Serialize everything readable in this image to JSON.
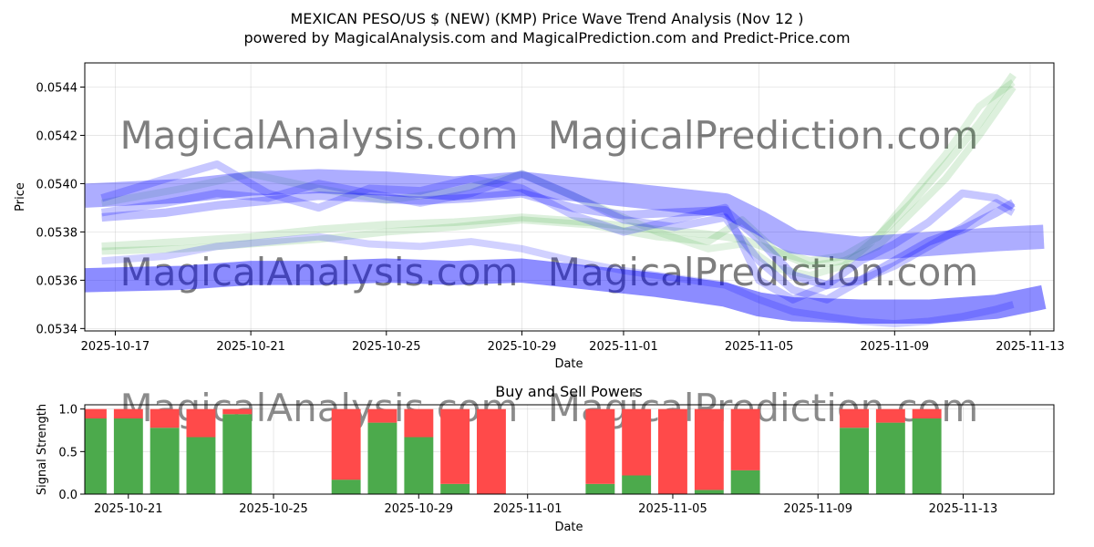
{
  "chart_data": [
    {
      "type": "line",
      "title_line1": "MEXICAN PESO/US $ (NEW) (KMP) Price Wave Trend Analysis (Nov 12 )",
      "title_line2": "powered by MagicalAnalysis.com and MagicalPrediction.com and Predict-Price.com",
      "xlabel": "Date",
      "ylabel": "Price",
      "xlim_days": [
        -0.9,
        27.7
      ],
      "ylim": [
        0.05339,
        0.0545
      ],
      "x_ticks": [
        {
          "day": 0,
          "label": "2025-10-17"
        },
        {
          "day": 4,
          "label": "2025-10-21"
        },
        {
          "day": 8,
          "label": "2025-10-25"
        },
        {
          "day": 12,
          "label": "2025-10-29"
        },
        {
          "day": 15,
          "label": "2025-11-01"
        },
        {
          "day": 19,
          "label": "2025-11-05"
        },
        {
          "day": 23,
          "label": "2025-11-09"
        },
        {
          "day": 27,
          "label": "2025-11-13"
        }
      ],
      "y_ticks": [
        {
          "value": 0.0534,
          "label": "0.0534"
        },
        {
          "value": 0.0536,
          "label": "0.0536"
        },
        {
          "value": 0.0538,
          "label": "0.0538"
        },
        {
          "value": 0.054,
          "label": "0.0540"
        },
        {
          "value": 0.0542,
          "label": "0.0542"
        },
        {
          "value": 0.0544,
          "label": "0.0544"
        }
      ],
      "watermarks": [
        "MagicalAnalysis.com",
        "MagicalPrediction.com"
      ],
      "series": [
        {
          "name": "green-1",
          "color": "#2ca02c",
          "opacity": 0.16,
          "width_value": 3.2e-05,
          "x": [
            -0.4,
            2,
            4,
            6,
            8,
            10,
            12,
            14,
            16,
            17.5,
            18.5,
            19.5,
            20.5,
            21.5,
            22.5,
            23.5,
            24.5,
            25.5,
            26.5
          ],
          "y": [
            0.05374,
            0.05376,
            0.05378,
            0.05381,
            0.05383,
            0.05384,
            0.05386,
            0.05384,
            0.05381,
            0.05379,
            0.05377,
            0.05372,
            0.05368,
            0.0537,
            0.05378,
            0.05392,
            0.05408,
            0.05425,
            0.05445
          ]
        },
        {
          "name": "green-2",
          "color": "#2ca02c",
          "opacity": 0.16,
          "width_value": 3e-05,
          "x": [
            -0.4,
            2,
            4,
            6,
            8,
            10,
            12,
            14,
            16,
            17.5,
            18.5,
            19.5,
            20.5,
            21.5,
            22.5,
            23.5,
            24.5,
            25.5,
            26.5
          ],
          "y": [
            0.05372,
            0.05373,
            0.05375,
            0.05377,
            0.0538,
            0.05382,
            0.05385,
            0.05383,
            0.05378,
            0.05376,
            0.05385,
            0.05372,
            0.05366,
            0.05368,
            0.05374,
            0.05388,
            0.05402,
            0.0542,
            0.0544
          ]
        },
        {
          "name": "green-3",
          "color": "#2ca02c",
          "opacity": 0.14,
          "width_value": 3e-05,
          "x": [
            -0.4,
            2,
            4,
            6,
            8,
            10,
            12,
            14,
            16,
            17.5,
            18.5,
            19.5,
            20.5,
            21.5,
            22.5,
            23.5,
            24.5,
            25.5,
            26.5
          ],
          "y": [
            0.05392,
            0.05398,
            0.05404,
            0.05398,
            0.05393,
            0.05397,
            0.05404,
            0.05392,
            0.0538,
            0.05373,
            0.05375,
            0.05365,
            0.05362,
            0.05366,
            0.05378,
            0.05395,
            0.05412,
            0.05432,
            0.05442
          ]
        },
        {
          "name": "blue-upper-band",
          "color": "#0000ff",
          "opacity": 0.32,
          "width_value": 0.0001,
          "x": [
            -0.9,
            2,
            4,
            6,
            8,
            10,
            12,
            14,
            16,
            18,
            19,
            20,
            22,
            24,
            26,
            27.4
          ],
          "y": [
            0.05395,
            0.05397,
            0.054,
            0.05401,
            0.054,
            0.05398,
            0.054,
            0.05397,
            0.05394,
            0.05391,
            0.05384,
            0.05376,
            0.05373,
            0.05375,
            0.05377,
            0.05378
          ]
        },
        {
          "name": "blue-lower-band",
          "color": "#0000ff",
          "opacity": 0.45,
          "width_value": 0.0001,
          "x": [
            -0.9,
            2,
            4,
            6,
            8,
            10,
            12,
            14,
            16,
            18,
            19,
            20,
            22,
            24,
            26,
            27.4
          ],
          "y": [
            0.0536,
            0.05361,
            0.05363,
            0.05363,
            0.05364,
            0.05363,
            0.05364,
            0.05361,
            0.05358,
            0.05354,
            0.0535,
            0.05348,
            0.05347,
            0.05347,
            0.05349,
            0.05353
          ]
        },
        {
          "name": "blue-wave-1",
          "color": "#0000ff",
          "opacity": 0.22,
          "width_value": 3.2e-05,
          "x": [
            -0.4,
            1.5,
            3,
            4.5,
            6,
            7.5,
            9,
            10.5,
            12,
            13.5,
            15,
            16.5,
            18,
            19,
            20,
            21,
            22,
            23,
            24,
            25,
            26,
            26.5
          ],
          "y": [
            0.05394,
            0.05402,
            0.05408,
            0.05396,
            0.0539,
            0.05398,
            0.05397,
            0.05402,
            0.05398,
            0.05387,
            0.0538,
            0.05385,
            0.0539,
            0.0536,
            0.05352,
            0.05358,
            0.05368,
            0.05375,
            0.05384,
            0.05396,
            0.05394,
            0.0539
          ]
        },
        {
          "name": "blue-wave-2",
          "color": "#0000ff",
          "opacity": 0.22,
          "width_value": 3.2e-05,
          "x": [
            -0.4,
            1.5,
            3,
            4.5,
            6,
            7.5,
            9,
            10.5,
            12,
            13.5,
            15,
            16.5,
            18,
            19,
            20,
            21,
            22,
            23,
            24,
            25,
            26,
            26.5
          ],
          "y": [
            0.05388,
            0.05392,
            0.05396,
            0.05394,
            0.054,
            0.05396,
            0.05392,
            0.05396,
            0.05404,
            0.05395,
            0.05385,
            0.05382,
            0.05386,
            0.05368,
            0.05356,
            0.05352,
            0.0536,
            0.05366,
            0.05374,
            0.05382,
            0.05392,
            0.05388
          ]
        },
        {
          "name": "blue-wave-3",
          "color": "#0000ff",
          "opacity": 0.25,
          "width_value": 3.5e-05,
          "x": [
            -0.4,
            1.5,
            3,
            4.5,
            6,
            7.5,
            9,
            10.5,
            12,
            13.5,
            15,
            16.5,
            18,
            19,
            20,
            21,
            22,
            23,
            24,
            25,
            26,
            26.5
          ],
          "y": [
            0.05386,
            0.05388,
            0.05391,
            0.05393,
            0.05395,
            0.05394,
            0.05393,
            0.05394,
            0.05396,
            0.0539,
            0.05387,
            0.05388,
            0.05389,
            0.05377,
            0.05362,
            0.05358,
            0.0536,
            0.05368,
            0.05376,
            0.05381,
            0.05388,
            0.05392
          ]
        },
        {
          "name": "blue-wave-4",
          "color": "#0000ff",
          "opacity": 0.18,
          "width_value": 3e-05,
          "x": [
            -0.4,
            1.5,
            3,
            4.5,
            6,
            7.5,
            9,
            10.5,
            12,
            13.5,
            15,
            16.5,
            18,
            19,
            20,
            21,
            22,
            23,
            24,
            25,
            26,
            26.5
          ],
          "y": [
            0.05368,
            0.0537,
            0.05374,
            0.05376,
            0.05378,
            0.05375,
            0.05374,
            0.05376,
            0.05373,
            0.05368,
            0.05364,
            0.05361,
            0.05358,
            0.05352,
            0.05347,
            0.05345,
            0.05343,
            0.05342,
            0.05343,
            0.05345,
            0.05348,
            0.0535
          ]
        }
      ]
    },
    {
      "type": "bar",
      "title": "Buy and Sell Powers",
      "xlabel": "Date",
      "ylabel": "Signal Strength",
      "ylim": [
        0,
        1.05
      ],
      "xlim_days": [
        -1.2,
        25.5
      ],
      "x_ticks": [
        {
          "day": 0,
          "label": "2025-10-21"
        },
        {
          "day": 4,
          "label": "2025-10-25"
        },
        {
          "day": 8,
          "label": "2025-10-29"
        },
        {
          "day": 11,
          "label": "2025-11-01"
        },
        {
          "day": 15,
          "label": "2025-11-05"
        },
        {
          "day": 19,
          "label": "2025-11-09"
        },
        {
          "day": 23,
          "label": "2025-11-13"
        }
      ],
      "y_ticks": [
        {
          "value": 0.0,
          "label": "0.0"
        },
        {
          "value": 0.5,
          "label": "0.5"
        },
        {
          "value": 1.0,
          "label": "1.0"
        }
      ],
      "buy_color": "#4caa4c",
      "sell_color": "#ff4a4a",
      "watermarks": [
        "MagicalAnalysis.com",
        "MagicalPrediction.com"
      ],
      "bars": [
        {
          "day": -1,
          "buy": 0.89,
          "sell": 0.11
        },
        {
          "day": 0,
          "buy": 0.89,
          "sell": 0.11
        },
        {
          "day": 1,
          "buy": 0.78,
          "sell": 0.22
        },
        {
          "day": 2,
          "buy": 0.67,
          "sell": 0.33
        },
        {
          "day": 3,
          "buy": 0.94,
          "sell": 0.06
        },
        {
          "day": 6,
          "buy": 0.17,
          "sell": 0.83
        },
        {
          "day": 7,
          "buy": 0.84,
          "sell": 0.16
        },
        {
          "day": 8,
          "buy": 0.67,
          "sell": 0.33
        },
        {
          "day": 9,
          "buy": 0.12,
          "sell": 0.88
        },
        {
          "day": 10,
          "buy": 0.0,
          "sell": 1.0
        },
        {
          "day": 13,
          "buy": 0.12,
          "sell": 0.88
        },
        {
          "day": 14,
          "buy": 0.22,
          "sell": 0.78
        },
        {
          "day": 15,
          "buy": 0.0,
          "sell": 1.0
        },
        {
          "day": 16,
          "buy": 0.05,
          "sell": 0.95
        },
        {
          "day": 17,
          "buy": 0.28,
          "sell": 0.72
        },
        {
          "day": 20,
          "buy": 0.78,
          "sell": 0.22
        },
        {
          "day": 21,
          "buy": 0.84,
          "sell": 0.16
        },
        {
          "day": 22,
          "buy": 0.89,
          "sell": 0.11
        }
      ]
    }
  ]
}
